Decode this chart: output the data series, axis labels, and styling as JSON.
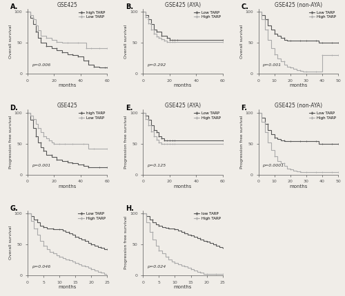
{
  "panels": [
    {
      "label": "A.",
      "title": "GSE425",
      "xlabel": "months",
      "ylabel": "Overall survival",
      "pvalue": "p=0.006",
      "xlim": [
        0,
        60
      ],
      "ylim": [
        0,
        105
      ],
      "xticks": [
        0,
        20,
        40,
        60
      ],
      "yticks": [
        0,
        50,
        100
      ],
      "legend": [
        "high TARP",
        "Low TARP"
      ],
      "curves": [
        {
          "steps_x": [
            0,
            2,
            4,
            6,
            8,
            10,
            14,
            18,
            22,
            26,
            30,
            34,
            38,
            42,
            46,
            50,
            54,
            58,
            60
          ],
          "steps_y": [
            100,
            90,
            80,
            68,
            58,
            50,
            45,
            42,
            38,
            35,
            32,
            30,
            28,
            22,
            15,
            12,
            10,
            10,
            10
          ]
        },
        {
          "steps_x": [
            0,
            2,
            4,
            6,
            8,
            10,
            14,
            18,
            22,
            26,
            30,
            34,
            38,
            42,
            44,
            46,
            48,
            50,
            54,
            58,
            60
          ],
          "steps_y": [
            100,
            95,
            88,
            78,
            70,
            62,
            58,
            55,
            52,
            50,
            50,
            50,
            50,
            50,
            42,
            42,
            42,
            42,
            42,
            42,
            42
          ]
        }
      ],
      "row": 0,
      "col": 0
    },
    {
      "label": "B.",
      "title": "GSE425 (AYA)",
      "xlabel": "months",
      "ylabel": "Overall survival",
      "pvalue": "p=0.292",
      "xlim": [
        0,
        60
      ],
      "ylim": [
        0,
        105
      ],
      "xticks": [
        0,
        20,
        40,
        60
      ],
      "yticks": [
        0,
        50,
        100
      ],
      "legend": [
        "Low TARP",
        "High TARP"
      ],
      "curves": [
        {
          "steps_x": [
            0,
            2,
            4,
            6,
            8,
            10,
            14,
            18,
            20,
            22,
            24,
            26,
            60
          ],
          "steps_y": [
            100,
            95,
            88,
            80,
            72,
            68,
            62,
            58,
            55,
            55,
            55,
            55,
            55
          ]
        },
        {
          "steps_x": [
            0,
            2,
            4,
            6,
            8,
            10,
            12,
            14,
            16,
            18,
            20,
            22,
            24,
            60
          ],
          "steps_y": [
            100,
            92,
            82,
            72,
            65,
            60,
            58,
            56,
            54,
            52,
            52,
            52,
            52,
            52
          ]
        }
      ],
      "row": 0,
      "col": 1
    },
    {
      "label": "C.",
      "title": "GSE425 (non-AYA)",
      "xlabel": "months",
      "ylabel": "Overall survival",
      "pvalue": "p=0.001",
      "xlim": [
        0,
        50
      ],
      "ylim": [
        0,
        105
      ],
      "xticks": [
        0,
        10,
        20,
        30,
        40,
        50
      ],
      "yticks": [
        0,
        50,
        100
      ],
      "legend": [
        "Low TARP",
        "High TARP"
      ],
      "curves": [
        {
          "steps_x": [
            0,
            2,
            4,
            6,
            8,
            10,
            12,
            14,
            16,
            18,
            20,
            22,
            24,
            26,
            28,
            30,
            32,
            34,
            36,
            38,
            40,
            42,
            44,
            46,
            48,
            50
          ],
          "steps_y": [
            100,
            95,
            88,
            78,
            72,
            65,
            62,
            58,
            55,
            54,
            54,
            54,
            54,
            54,
            54,
            54,
            54,
            54,
            54,
            50,
            50,
            50,
            50,
            50,
            50,
            50
          ]
        },
        {
          "steps_x": [
            0,
            2,
            4,
            6,
            8,
            10,
            12,
            14,
            16,
            18,
            20,
            22,
            24,
            26,
            28,
            30,
            32,
            34,
            36,
            38,
            40,
            42,
            44,
            46,
            48,
            50
          ],
          "steps_y": [
            100,
            88,
            72,
            55,
            42,
            32,
            25,
            20,
            15,
            12,
            10,
            8,
            6,
            5,
            4,
            4,
            4,
            4,
            4,
            4,
            30,
            30,
            30,
            30,
            30,
            30
          ]
        }
      ],
      "row": 0,
      "col": 2
    },
    {
      "label": "D.",
      "title": "GSE425",
      "xlabel": "months",
      "ylabel": "Progression free survival",
      "pvalue": "p=0.001",
      "xlim": [
        0,
        60
      ],
      "ylim": [
        0,
        105
      ],
      "xticks": [
        0,
        20,
        40,
        60
      ],
      "yticks": [
        0,
        50,
        100
      ],
      "legend": [
        "high TARP",
        "Low TARP"
      ],
      "curves": [
        {
          "steps_x": [
            0,
            2,
            4,
            6,
            8,
            10,
            12,
            14,
            18,
            22,
            26,
            30,
            34,
            38,
            42,
            46,
            50,
            54,
            60
          ],
          "steps_y": [
            100,
            88,
            75,
            62,
            52,
            44,
            38,
            32,
            28,
            24,
            22,
            20,
            18,
            16,
            14,
            12,
            12,
            12,
            12
          ]
        },
        {
          "steps_x": [
            0,
            2,
            4,
            6,
            8,
            10,
            12,
            14,
            16,
            18,
            20,
            22,
            24,
            26,
            28,
            30,
            34,
            38,
            42,
            46,
            50,
            54,
            60
          ],
          "steps_y": [
            100,
            95,
            90,
            82,
            75,
            68,
            62,
            58,
            55,
            52,
            50,
            50,
            50,
            50,
            50,
            50,
            50,
            50,
            50,
            42,
            42,
            42,
            42
          ]
        }
      ],
      "row": 1,
      "col": 0
    },
    {
      "label": "E.",
      "title": "GSE425 (AYA)",
      "xlabel": "months",
      "ylabel": "Progression free survival",
      "pvalue": "p=0.125",
      "xlim": [
        0,
        60
      ],
      "ylim": [
        0,
        105
      ],
      "xticks": [
        0,
        20,
        40,
        60
      ],
      "yticks": [
        0,
        50,
        100
      ],
      "legend": [
        "Low TARP",
        "High TARP"
      ],
      "curves": [
        {
          "steps_x": [
            0,
            2,
            4,
            6,
            8,
            10,
            12,
            14,
            16,
            18,
            20,
            22,
            24,
            60
          ],
          "steps_y": [
            100,
            95,
            88,
            80,
            72,
            68,
            62,
            58,
            55,
            55,
            55,
            55,
            55,
            55
          ]
        },
        {
          "steps_x": [
            0,
            2,
            4,
            6,
            8,
            10,
            12,
            14,
            16,
            18,
            20,
            22,
            24,
            60
          ],
          "steps_y": [
            100,
            90,
            80,
            70,
            62,
            56,
            52,
            50,
            50,
            50,
            50,
            50,
            50,
            50
          ]
        }
      ],
      "row": 1,
      "col": 1
    },
    {
      "label": "F.",
      "title": "GSE425 (non-AYA)",
      "xlabel": "months",
      "ylabel": "Progression free survival",
      "pvalue": "p=0.0001",
      "xlim": [
        0,
        50
      ],
      "ylim": [
        0,
        105
      ],
      "xticks": [
        0,
        10,
        20,
        30,
        40,
        50
      ],
      "yticks": [
        0,
        50,
        100
      ],
      "legend": [
        "Low TARP",
        "High TARP"
      ],
      "curves": [
        {
          "steps_x": [
            0,
            2,
            4,
            6,
            8,
            10,
            12,
            14,
            16,
            18,
            20,
            22,
            24,
            26,
            28,
            30,
            32,
            34,
            36,
            38,
            40,
            42,
            44,
            46,
            48,
            50
          ],
          "steps_y": [
            100,
            92,
            82,
            72,
            65,
            60,
            57,
            55,
            54,
            54,
            54,
            54,
            54,
            54,
            54,
            54,
            54,
            54,
            54,
            50,
            50,
            50,
            50,
            50,
            50,
            50
          ]
        },
        {
          "steps_x": [
            0,
            2,
            4,
            6,
            8,
            10,
            12,
            14,
            16,
            18,
            20,
            22,
            24,
            26,
            28,
            30,
            32,
            34,
            36,
            38,
            40,
            42,
            44,
            46,
            48,
            50
          ],
          "steps_y": [
            100,
            85,
            68,
            52,
            40,
            30,
            22,
            18,
            14,
            10,
            8,
            6,
            5,
            4,
            4,
            4,
            4,
            4,
            4,
            4,
            4,
            4,
            4,
            4,
            4,
            4
          ]
        }
      ],
      "row": 1,
      "col": 2
    },
    {
      "label": "G.",
      "title": "",
      "xlabel": "months",
      "ylabel": "Overall survival",
      "pvalue": "p=0.046",
      "xlim": [
        0,
        25
      ],
      "ylim": [
        0,
        105
      ],
      "xticks": [
        0,
        5,
        10,
        15,
        20,
        25
      ],
      "yticks": [
        0,
        50,
        100
      ],
      "legend": [
        "Low TARP",
        "High TARP"
      ],
      "curves": [
        {
          "steps_x": [
            0,
            1,
            2,
            3,
            4,
            5,
            6,
            7,
            8,
            9,
            10,
            11,
            12,
            13,
            14,
            15,
            16,
            17,
            18,
            19,
            20,
            21,
            22,
            23,
            24,
            25
          ],
          "steps_y": [
            100,
            95,
            90,
            85,
            80,
            78,
            76,
            75,
            74,
            74,
            74,
            72,
            70,
            68,
            65,
            62,
            60,
            58,
            55,
            52,
            50,
            48,
            46,
            44,
            42,
            42
          ]
        },
        {
          "steps_x": [
            0,
            1,
            2,
            3,
            4,
            5,
            6,
            7,
            8,
            9,
            10,
            11,
            12,
            13,
            14,
            15,
            16,
            17,
            18,
            19,
            20,
            21,
            22,
            23,
            24,
            25
          ],
          "steps_y": [
            100,
            88,
            75,
            65,
            55,
            48,
            42,
            38,
            35,
            32,
            30,
            28,
            26,
            24,
            22,
            20,
            18,
            16,
            14,
            12,
            10,
            8,
            6,
            4,
            2,
            0
          ]
        }
      ],
      "row": 2,
      "col": 0
    },
    {
      "label": "H.",
      "title": "",
      "xlabel": "months",
      "ylabel": "Progression free survival",
      "pvalue": "p=0.024",
      "xlim": [
        0,
        25
      ],
      "ylim": [
        0,
        105
      ],
      "xticks": [
        0,
        5,
        10,
        15,
        20,
        25
      ],
      "yticks": [
        0,
        50,
        100
      ],
      "legend": [
        "low TARP",
        "High TARP"
      ],
      "curves": [
        {
          "steps_x": [
            0,
            1,
            2,
            3,
            4,
            5,
            6,
            7,
            8,
            9,
            10,
            11,
            12,
            13,
            14,
            15,
            16,
            17,
            18,
            19,
            20,
            21,
            22,
            23,
            24,
            25
          ],
          "steps_y": [
            100,
            95,
            90,
            85,
            82,
            80,
            78,
            77,
            76,
            75,
            74,
            72,
            70,
            68,
            66,
            64,
            62,
            60,
            58,
            56,
            54,
            52,
            50,
            48,
            46,
            44
          ]
        },
        {
          "steps_x": [
            0,
            1,
            2,
            3,
            4,
            5,
            6,
            7,
            8,
            9,
            10,
            11,
            12,
            13,
            14,
            15,
            16,
            17,
            18,
            19,
            20,
            21,
            22,
            23,
            24,
            25
          ],
          "steps_y": [
            100,
            85,
            70,
            58,
            48,
            40,
            35,
            30,
            26,
            22,
            20,
            18,
            16,
            14,
            12,
            10,
            8,
            6,
            4,
            2,
            2,
            2,
            2,
            2,
            2,
            2
          ]
        }
      ],
      "row": 2,
      "col": 1
    }
  ],
  "bg_color": "#f0ede8",
  "line_color_1": "#555555",
  "line_color_2": "#aaaaaa",
  "tick_color": "#555555",
  "marker_style": "+"
}
